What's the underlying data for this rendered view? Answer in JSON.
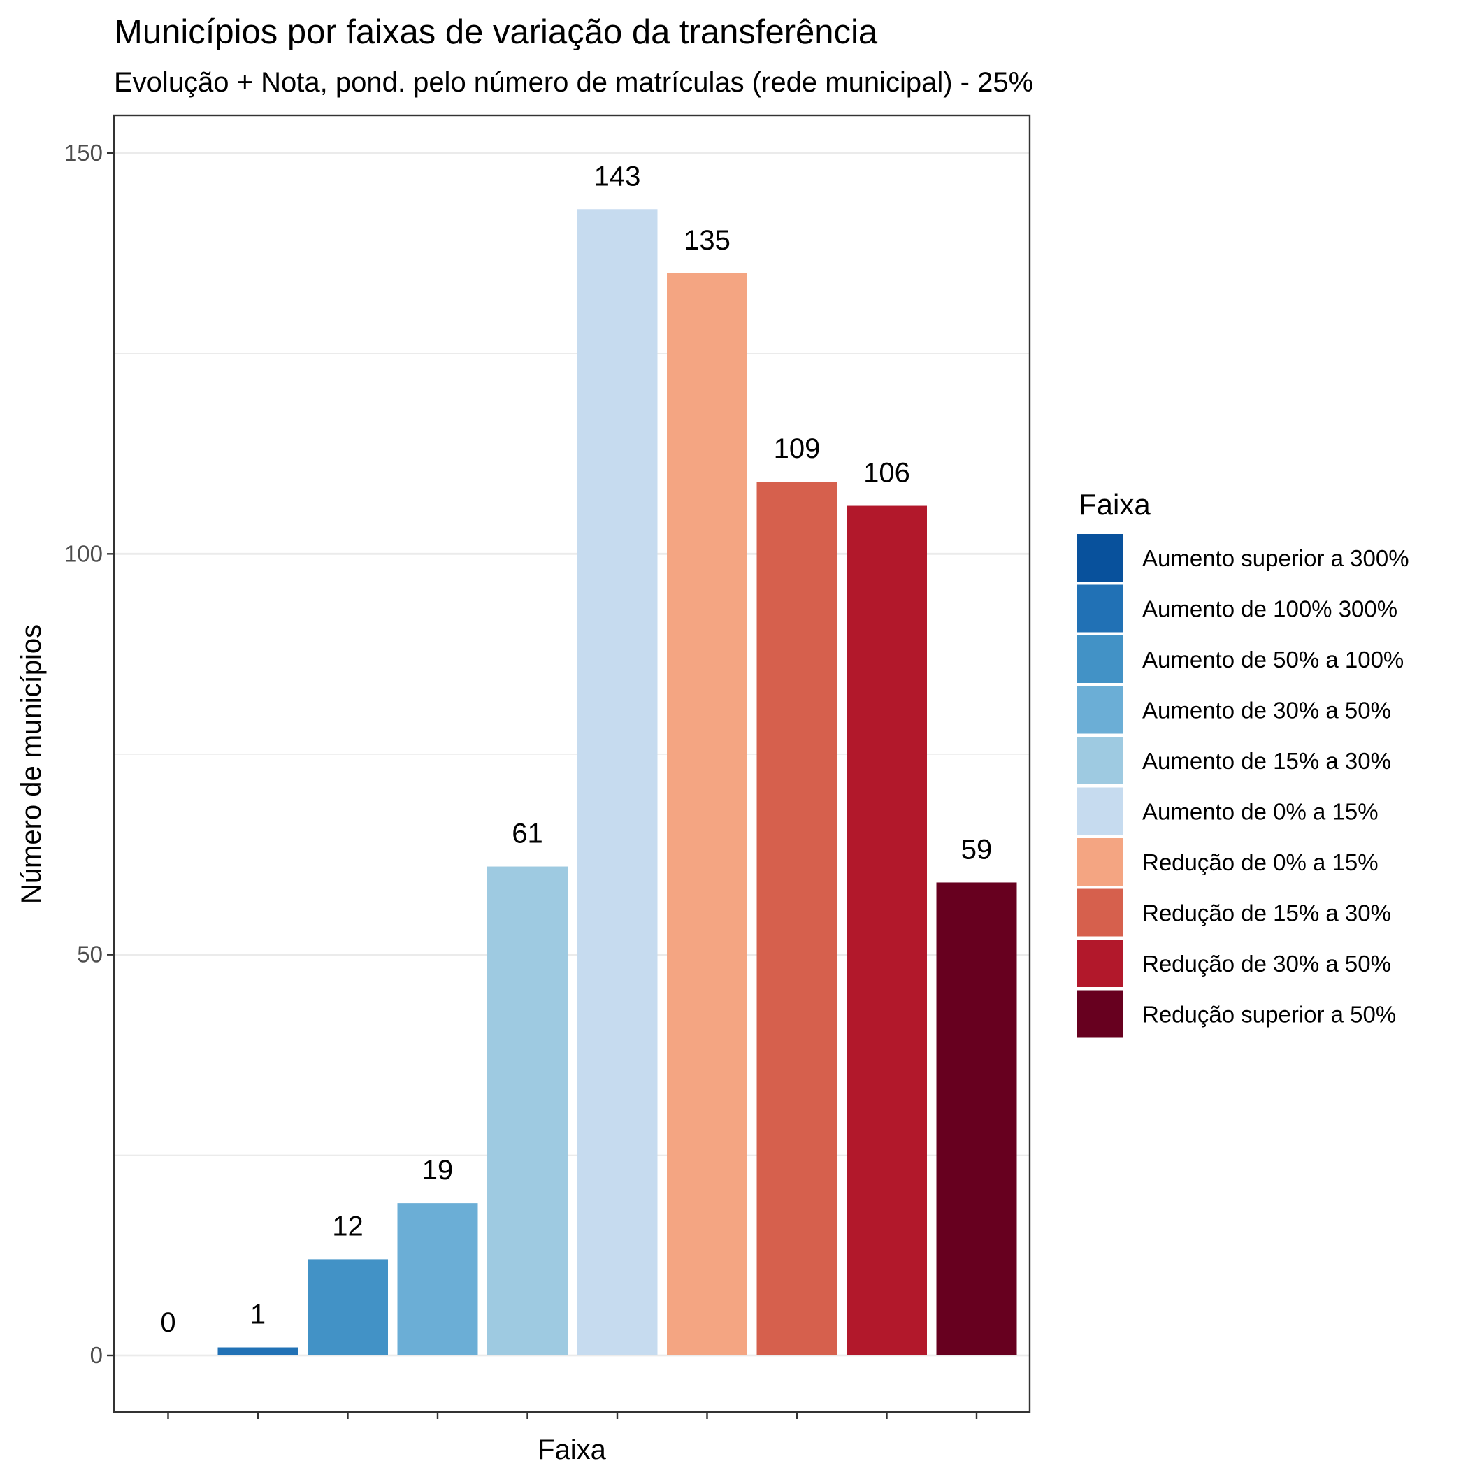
{
  "chart_data": {
    "type": "bar",
    "title": "Municípios por faixas de variação da transferência",
    "subtitle": "Evolução + Nota, pond. pelo número de matrículas (rede municipal) - 25%",
    "xlabel": "Faixa",
    "ylabel": "Número de municípios",
    "ylim": [
      -15,
      162
    ],
    "yticks": [
      0,
      50,
      100,
      150
    ],
    "grid": true,
    "legend_title": "Faixa",
    "legend_position": "right",
    "categories": [
      "Aumento superior a 300%",
      "Aumento de 100%  300%",
      "Aumento de 50% a 100%",
      "Aumento de 30% a 50%",
      "Aumento de 15% a 30%",
      "Aumento de 0% a 15%",
      "Redução de 0% a 15%",
      "Redução de 15% a 30%",
      "Redução de 30% a 50%",
      "Redução superior a 50%"
    ],
    "values": [
      0,
      1,
      12,
      19,
      61,
      143,
      135,
      109,
      106,
      59
    ],
    "colors": [
      "#08519c",
      "#2171b5",
      "#4292c6",
      "#6baed6",
      "#9ecae1",
      "#c6dbef",
      "#f4a582",
      "#d6604d",
      "#b2182b",
      "#67001f"
    ]
  }
}
